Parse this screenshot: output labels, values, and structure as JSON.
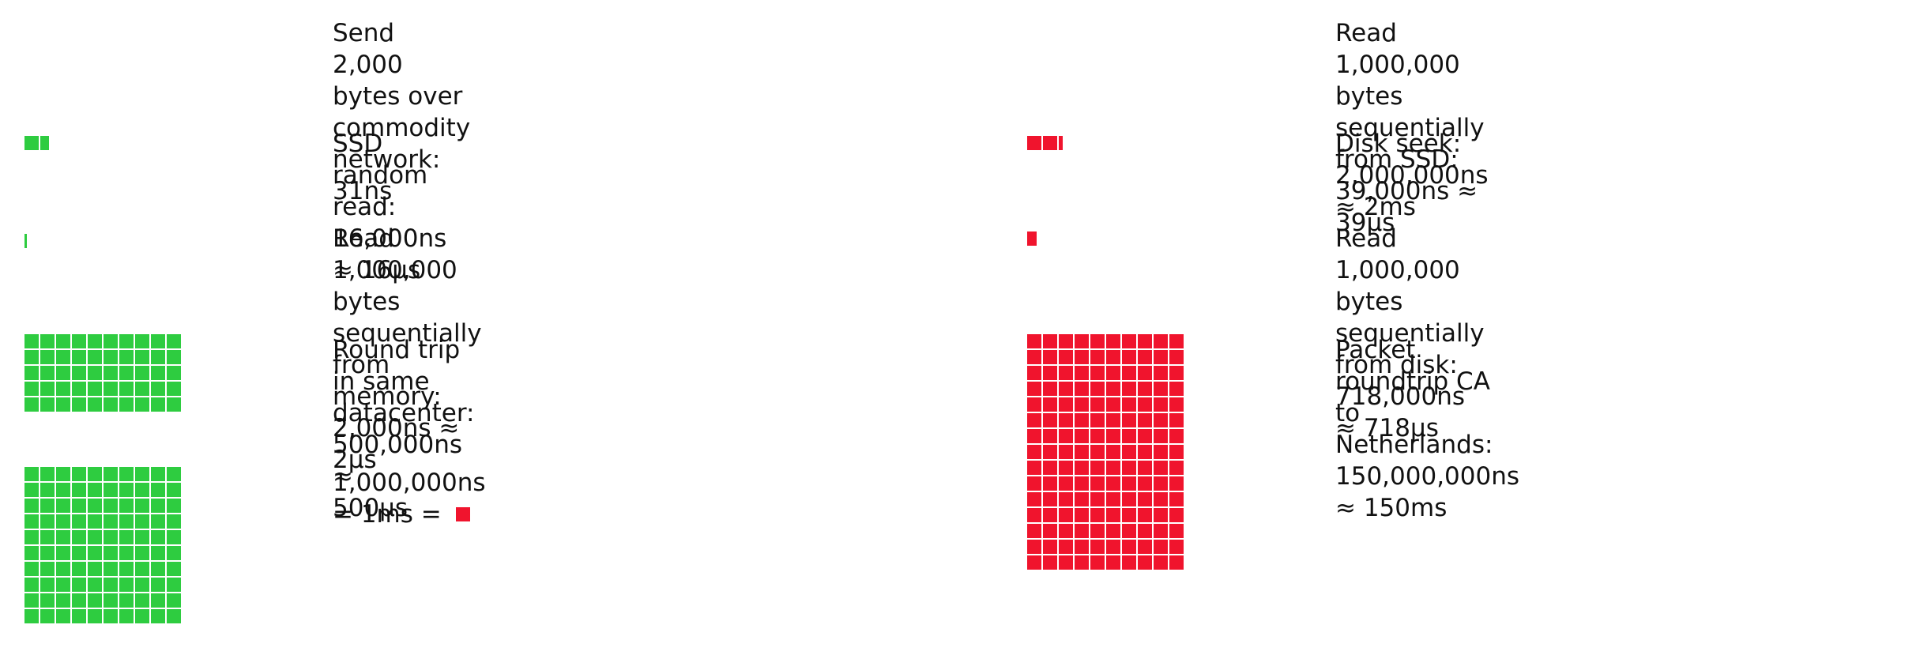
{
  "colors": {
    "green": "#2ecc40",
    "red": "#f0142d"
  },
  "cell": {
    "grid_unit_ns": 1000
  },
  "left_column": [
    {
      "id": "send-2000-bytes",
      "lines": [
        "Send 2,000 bytes over commodity network:",
        "31ns"
      ],
      "latency_ns": 31,
      "color": "green",
      "glyph": {
        "kind": "none"
      }
    },
    {
      "id": "ssd-random-read",
      "lines": [
        "SSD random read: 16,000ns ≈ 16μs"
      ],
      "latency_ns": 16000,
      "color": "green",
      "glyph": {
        "kind": "row",
        "full": 1,
        "partial": 0.6
      }
    },
    {
      "id": "read-memory",
      "lines": [
        "Read 1,000,000 bytes sequentially from",
        "memory: 2,000ns ≈ 2μs"
      ],
      "latency_ns": 2000,
      "color": "green",
      "glyph": {
        "kind": "sliver"
      }
    },
    {
      "id": "round-trip-datacenter",
      "lines": [
        "Round trip in same datacenter: 500,000ns ≈",
        "500μs"
      ],
      "latency_ns": 500000,
      "color": "green",
      "glyph": {
        "kind": "grid",
        "cols": 10,
        "rows": 5
      }
    },
    {
      "id": "one-ms",
      "lines": [
        "1,000,000ns = 1ms = "
      ],
      "latency_ns": 1000000,
      "color": "green",
      "glyph": {
        "kind": "grid",
        "cols": 10,
        "rows": 10
      },
      "inline_square_color": "red"
    }
  ],
  "right_column": [
    {
      "id": "read-ssd",
      "lines": [
        "Read 1,000,000 bytes sequentially from SSD:",
        "39,000ns ≈ 39μs"
      ],
      "latency_ns": 39000,
      "color": "red",
      "glyph": {
        "kind": "none"
      }
    },
    {
      "id": "disk-seek",
      "lines": [
        "Disk seek: 2,000,000ns ≈ 2ms"
      ],
      "latency_ns": 2000000,
      "color": "red",
      "glyph": {
        "kind": "row",
        "full": 2,
        "partial": 0.3
      }
    },
    {
      "id": "read-disk",
      "lines": [
        "Read 1,000,000 bytes sequentially from disk:",
        "718,000ns ≈ 718μs"
      ],
      "latency_ns": 718000,
      "color": "red",
      "glyph": {
        "kind": "single"
      }
    },
    {
      "id": "packet-roundtrip",
      "lines": [
        "Packet roundtrip CA to Netherlands:",
        "150,000,000ns ≈ 150ms"
      ],
      "latency_ns": 150000000,
      "color": "red",
      "glyph": {
        "kind": "grid",
        "cols": 10,
        "rows": 15
      }
    }
  ]
}
